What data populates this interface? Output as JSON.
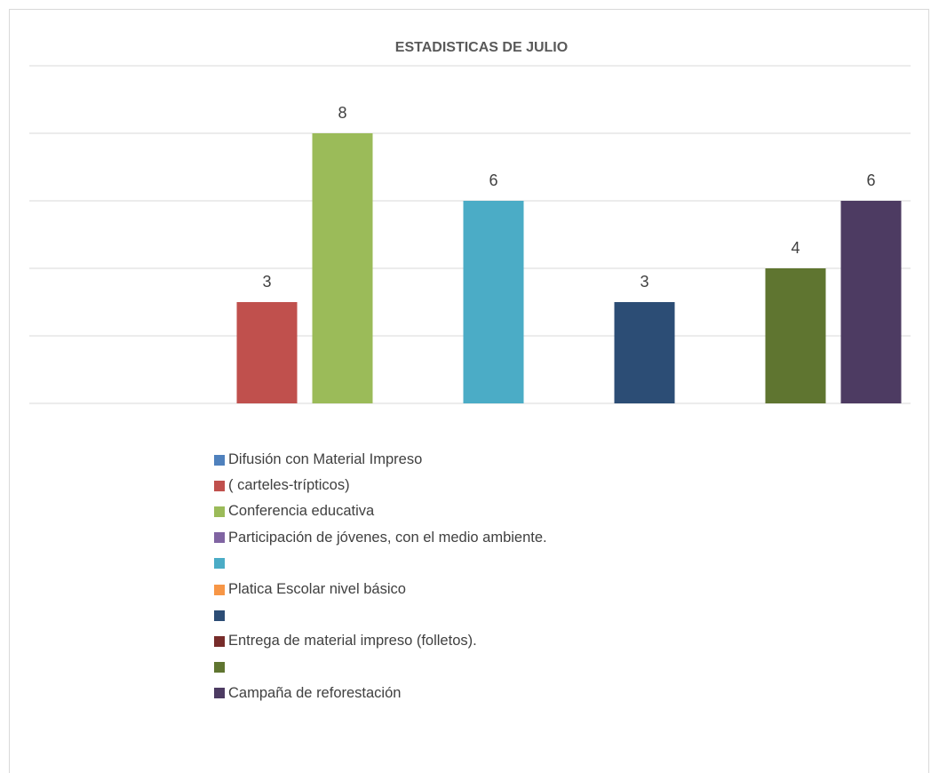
{
  "chart_data": {
    "type": "bar",
    "title": "ESTADISTICAS DE JULIO",
    "xlabel": "",
    "ylabel": "",
    "ylim": [
      0,
      10
    ],
    "grid": true,
    "legend_position": "bottom",
    "series": [
      {
        "name": "Difusión con Material Impreso",
        "color": "#4f81bd",
        "value": null
      },
      {
        "name": "( carteles-trípticos)",
        "color": "#c0504d",
        "value": 3
      },
      {
        "name": "Conferencia educativa",
        "color": "#9bbb59",
        "value": 8
      },
      {
        "name": "Participación de jóvenes, con el medio ambiente.",
        "color": "#8064a2",
        "value": null
      },
      {
        "name": "",
        "color": "#4bacc6",
        "value": 6
      },
      {
        "name": "Platica Escolar nivel básico",
        "color": "#f79646",
        "value": null
      },
      {
        "name": "",
        "color": "#2c4d75",
        "value": 3
      },
      {
        "name": "Entrega de material impreso (folletos).",
        "color": "#772c2a",
        "value": null
      },
      {
        "name": "",
        "color": "#5f7530",
        "value": 4
      },
      {
        "name": "Campaña de reforestación",
        "color": "#4d3b62",
        "value": 6
      }
    ]
  }
}
